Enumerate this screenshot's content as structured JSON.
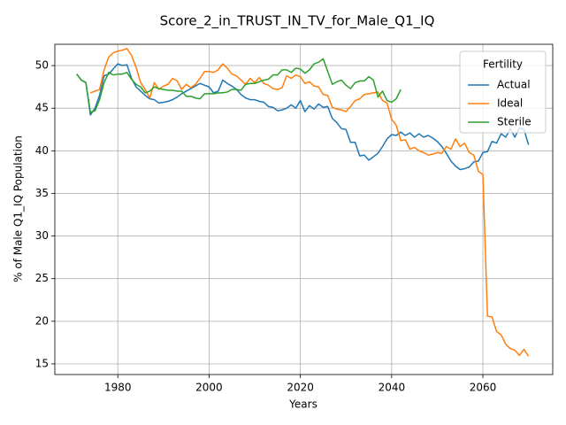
{
  "chart_data": {
    "type": "line",
    "title": "Score_2_in_TRUST_IN_TV_for_Male_Q1_IQ",
    "xlabel": "Years",
    "ylabel": "% of Male Q1_IQ Population",
    "legend_title": "Fertility",
    "legend": "upper right",
    "grid": true,
    "xlim": [
      1966.2,
      2075.3
    ],
    "ylim": [
      13.75,
      52.5
    ],
    "xticks": [
      1980,
      2000,
      2020,
      2040,
      2060
    ],
    "yticks": [
      15,
      20,
      25,
      30,
      35,
      40,
      45,
      50
    ],
    "x": [
      1971,
      1972,
      1973,
      1974,
      1975,
      1976,
      1977,
      1978,
      1979,
      1980,
      1981,
      1982,
      1983,
      1984,
      1985,
      1986,
      1987,
      1988,
      1989,
      1990,
      1991,
      1992,
      1993,
      1994,
      1995,
      1996,
      1997,
      1998,
      1999,
      2000,
      2001,
      2002,
      2003,
      2004,
      2005,
      2006,
      2007,
      2008,
      2009,
      2010,
      2011,
      2012,
      2013,
      2014,
      2015,
      2016,
      2017,
      2018,
      2019,
      2020,
      2021,
      2022,
      2023,
      2024,
      2025,
      2026,
      2027,
      2028,
      2029,
      2030,
      2031,
      2032,
      2033,
      2034,
      2035,
      2036,
      2037,
      2038,
      2039,
      2040,
      2041,
      2042,
      2043,
      2044,
      2045,
      2046,
      2047,
      2048,
      2049,
      2050,
      2051,
      2052,
      2053,
      2054,
      2055,
      2056,
      2057,
      2058,
      2059,
      2060,
      2061,
      2062,
      2063,
      2064,
      2065,
      2066,
      2067,
      2068,
      2069,
      2070
    ],
    "series": [
      {
        "name": "Actual",
        "color": "#1f77b4",
        "values": [
          49.0,
          48.3,
          48.0,
          44.2,
          45.0,
          46.5,
          48.8,
          49.0,
          49.6,
          50.2,
          50.0,
          50.1,
          48.5,
          47.5,
          47.0,
          46.5,
          46.1,
          46.0,
          45.6,
          45.7,
          45.8,
          46.0,
          46.3,
          46.7,
          47.0,
          47.3,
          47.6,
          47.9,
          47.7,
          47.5,
          46.8,
          47.0,
          48.3,
          47.9,
          47.6,
          47.2,
          46.6,
          46.2,
          46.0,
          46.0,
          45.8,
          45.7,
          45.2,
          45.1,
          44.7,
          44.8,
          45.0,
          45.4,
          45.0,
          45.9,
          44.6,
          45.3,
          44.9,
          45.5,
          45.1,
          45.2,
          43.8,
          43.3,
          42.6,
          42.5,
          41.0,
          41.0,
          39.4,
          39.5,
          38.9,
          39.3,
          39.7,
          40.5,
          41.4,
          41.9,
          41.8,
          42.2,
          41.8,
          42.1,
          41.6,
          42.0,
          41.6,
          41.8,
          41.5,
          41.1,
          40.5,
          39.7,
          38.8,
          38.2,
          37.8,
          37.9,
          38.1,
          38.7,
          38.8,
          39.8,
          39.9,
          41.1,
          40.9,
          42.0,
          41.6,
          42.6,
          41.6,
          42.7,
          42.5,
          40.7
        ]
      },
      {
        "name": "Ideal",
        "color": "#ff7f0e",
        "values": [
          null,
          null,
          null,
          46.8,
          47.0,
          47.2,
          49.5,
          51.0,
          51.5,
          51.7,
          51.8,
          52.0,
          51.2,
          49.8,
          48.0,
          47.2,
          46.2,
          48.0,
          47.2,
          47.6,
          47.8,
          48.5,
          48.2,
          47.2,
          47.8,
          47.4,
          47.8,
          48.5,
          49.3,
          49.3,
          49.2,
          49.5,
          50.2,
          49.7,
          49.0,
          48.8,
          48.3,
          47.8,
          48.5,
          48.0,
          48.6,
          47.9,
          47.7,
          47.3,
          47.2,
          47.4,
          48.8,
          48.5,
          48.9,
          48.7,
          47.9,
          48.1,
          47.6,
          47.5,
          46.6,
          46.5,
          45.1,
          44.9,
          44.8,
          44.6,
          45.2,
          45.9,
          46.1,
          46.6,
          46.7,
          46.8,
          46.9,
          45.9,
          45.6,
          43.7,
          43.0,
          41.2,
          41.3,
          40.2,
          40.4,
          40.0,
          39.8,
          39.5,
          39.6,
          39.8,
          39.7,
          40.5,
          40.2,
          41.4,
          40.5,
          40.9,
          39.8,
          39.5,
          37.6,
          37.2,
          20.6,
          20.5,
          18.8,
          18.4,
          17.3,
          16.8,
          16.6,
          16.0,
          16.7,
          15.9
        ]
      },
      {
        "name": "Sterile",
        "color": "#2ca02c",
        "values": [
          49.0,
          48.3,
          48.0,
          44.5,
          44.7,
          46.0,
          48.0,
          49.2,
          48.9,
          49.0,
          49.0,
          49.2,
          48.4,
          47.8,
          47.5,
          46.8,
          47.0,
          47.5,
          47.3,
          47.2,
          47.1,
          47.1,
          47.0,
          47.0,
          46.4,
          46.4,
          46.2,
          46.1,
          46.7,
          46.7,
          46.7,
          46.8,
          46.8,
          46.9,
          47.2,
          47.2,
          47.1,
          47.8,
          47.9,
          47.9,
          48.1,
          48.3,
          48.4,
          48.9,
          48.9,
          49.5,
          49.5,
          49.2,
          49.7,
          49.6,
          49.1,
          49.5,
          50.2,
          50.4,
          50.8,
          49.3,
          47.8,
          48.1,
          48.3,
          47.7,
          47.3,
          48.0,
          48.2,
          48.2,
          48.7,
          48.3,
          46.3,
          47.0,
          45.9,
          45.7,
          46.1,
          47.2,
          null,
          null,
          null,
          null,
          null,
          null,
          null,
          null,
          null,
          null,
          null,
          null,
          null,
          null,
          null,
          null,
          null,
          null,
          null,
          null,
          null,
          null,
          null,
          null,
          null,
          null,
          null,
          null
        ]
      }
    ]
  }
}
